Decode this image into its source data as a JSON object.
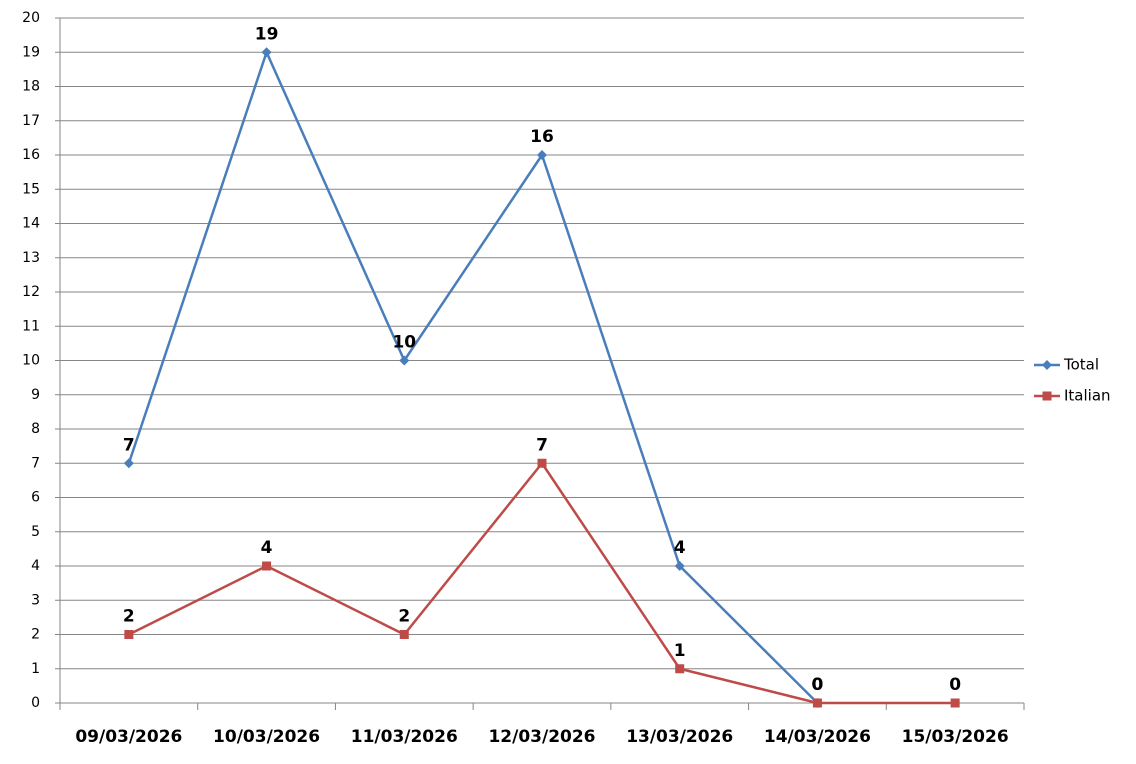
{
  "chart_data": {
    "type": "line",
    "categories": [
      "09/03/2026",
      "10/03/2026",
      "11/03/2026",
      "12/03/2026",
      "13/03/2026",
      "14/03/2026",
      "15/03/2026"
    ],
    "series": [
      {
        "name": "Total",
        "color": "#4a7ebb",
        "marker": "diamond",
        "values": [
          7,
          19,
          10,
          16,
          4,
          0,
          null
        ]
      },
      {
        "name": "Italian",
        "color": "#be4b48",
        "marker": "square",
        "values": [
          2,
          4,
          2,
          7,
          1,
          0,
          0
        ]
      }
    ],
    "ylim": [
      0,
      20
    ],
    "yticks": [
      0,
      1,
      2,
      3,
      4,
      5,
      6,
      7,
      8,
      9,
      10,
      11,
      12,
      13,
      14,
      15,
      16,
      17,
      18,
      19,
      20
    ],
    "grid": true,
    "legend": "right"
  }
}
